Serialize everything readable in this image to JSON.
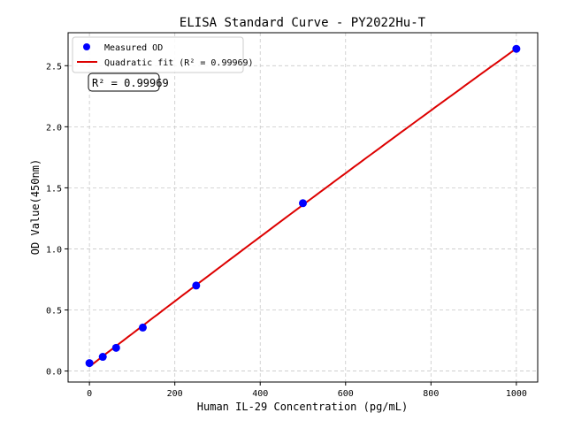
{
  "chart_data": {
    "type": "scatter",
    "title": "ELISA Standard Curve - PY2022Hu-T",
    "xlabel": "Human IL-29 Concentration (pg/mL)",
    "ylabel": "OD Value(450nm)",
    "xlim": [
      -50,
      1050
    ],
    "ylim": [
      -0.09,
      2.77
    ],
    "xticks": [
      0,
      200,
      400,
      600,
      800,
      1000
    ],
    "yticks": [
      0.0,
      0.5,
      1.0,
      1.5,
      2.0,
      2.5
    ],
    "xtick_labels": [
      "0",
      "200",
      "400",
      "600",
      "800",
      "1000"
    ],
    "ytick_labels": [
      "0.0",
      "0.5",
      "1.0",
      "1.5",
      "2.0",
      "2.5"
    ],
    "grid": true,
    "legend_position": "top-left",
    "series": [
      {
        "name": "Measured OD",
        "type": "scatter",
        "color": "#0000ff",
        "x": [
          0,
          31.25,
          62.5,
          125,
          250,
          500,
          1000
        ],
        "y": [
          0.065,
          0.116,
          0.19,
          0.356,
          0.7,
          1.374,
          2.638
        ]
      },
      {
        "name": "Quadratic fit (R² = 0.99969)",
        "type": "line",
        "color": "#dd0000"
      }
    ],
    "annotation": "R² = 0.99969"
  }
}
